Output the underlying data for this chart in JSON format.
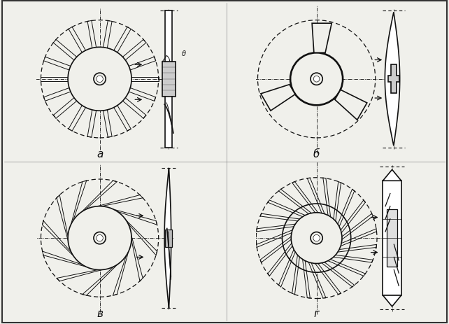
{
  "bg_color": "#f0f0eb",
  "line_color": "#111111",
  "white": "#ffffff",
  "labels": [
    "а",
    "б",
    "в",
    "г"
  ],
  "n_blades_a": 18,
  "n_blades_b": 3,
  "n_blades_v": 12,
  "n_blades_g": 24,
  "border_color": "#555555"
}
